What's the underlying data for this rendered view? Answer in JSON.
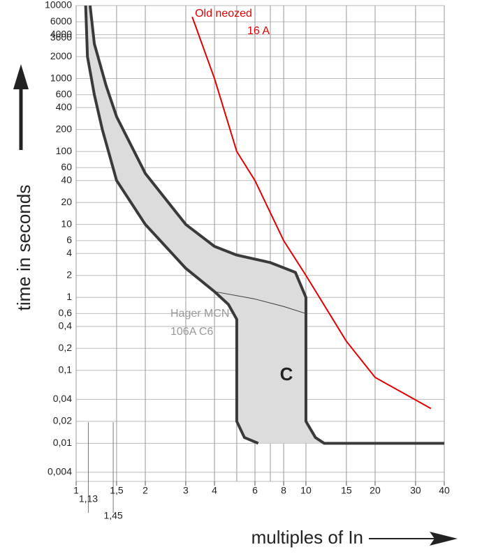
{
  "chart_data": {
    "type": "line",
    "log_x": true,
    "log_y": true,
    "grid": true,
    "y_label": "time in seconds",
    "x_label": "multiples of In",
    "xlim": [
      1,
      40
    ],
    "ylim": [
      0.003,
      10000
    ],
    "xticks": [
      1,
      {
        "value": 1.5,
        "label": "1,5"
      },
      2,
      3,
      4,
      6,
      8,
      10,
      15,
      20,
      30,
      40
    ],
    "xgrid_extra": [
      5,
      7
    ],
    "xmarkers": [
      {
        "value": 1.13,
        "label": "1,13"
      },
      {
        "value": 1.45,
        "label": "1,45"
      }
    ],
    "yticks": [
      10000,
      6000,
      4000,
      3600,
      2000,
      1000,
      600,
      400,
      200,
      100,
      60,
      40,
      20,
      10,
      6,
      4,
      2,
      1,
      {
        "value": 0.6,
        "label": "0,6"
      },
      {
        "value": 0.4,
        "label": "0,4"
      },
      {
        "value": 0.2,
        "label": "0,2"
      },
      {
        "value": 0.1,
        "label": "0,1"
      },
      {
        "value": 0.04,
        "label": "0,04"
      },
      {
        "value": 0.02,
        "label": "0,02"
      },
      {
        "value": 0.01,
        "label": "0,01"
      },
      {
        "value": 0.004,
        "label": "0,004"
      }
    ],
    "series": [
      {
        "color": "#3a3a3a",
        "x": [
          1.15,
          1.2,
          1.35,
          1.5,
          2,
          3,
          4,
          5,
          7,
          9,
          10,
          10,
          11,
          12,
          40
        ],
        "values": [
          10000,
          3000,
          800,
          300,
          50,
          10,
          5,
          3.8,
          3,
          2.2,
          1,
          0.02,
          0.012,
          0.01,
          0.01
        ]
      },
      {
        "color": "#3a3a3a",
        "x": [
          1.1,
          1.12,
          1.2,
          1.3,
          1.5,
          2,
          3,
          4,
          4.6,
          5,
          5,
          5.4,
          6.2
        ],
        "values": [
          10000,
          2000,
          600,
          200,
          40,
          10,
          2.5,
          1.2,
          0.8,
          0.5,
          0.02,
          0.012,
          0.01
        ]
      },
      {
        "color": "#3a3a3a",
        "x": [
          4,
          6,
          8,
          10
        ],
        "values": [
          1.2,
          0.95,
          0.75,
          0.6
        ]
      },
      {
        "color": "#e00000",
        "x": [
          3.2,
          4,
          5,
          6,
          8,
          10,
          15,
          20,
          35
        ],
        "values": [
          7000,
          1000,
          100,
          40,
          6,
          2,
          0.25,
          0.08,
          0.03
        ]
      }
    ],
    "annotations": [
      "Old neozed",
      "16 A",
      "Hager MCN",
      "106A C6",
      "C"
    ]
  }
}
